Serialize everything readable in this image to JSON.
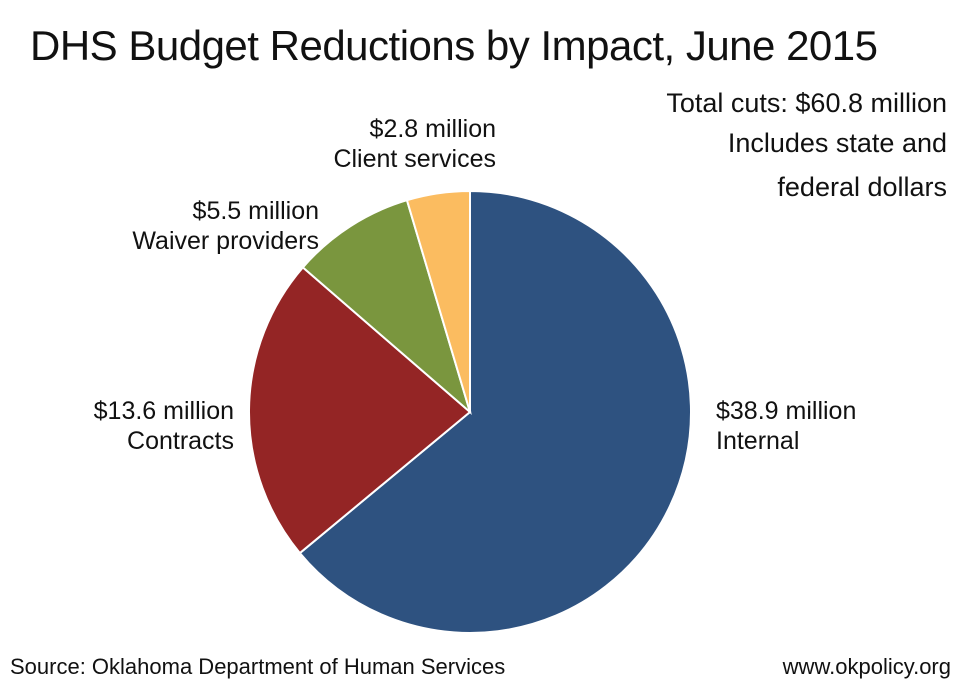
{
  "chart_data": {
    "type": "pie",
    "title": "DHS Budget Reductions by Impact, June 2015",
    "notes": [
      "Total cuts: $60.8 million",
      "Includes state and",
      "federal dollars"
    ],
    "slices": [
      {
        "label": "Internal",
        "value_label": "$38.9 million",
        "value": 38.9,
        "color": "#2e5280"
      },
      {
        "label": "Contracts",
        "value_label": "$13.6 million",
        "value": 13.6,
        "color": "#942525"
      },
      {
        "label": "Waiver providers",
        "value_label": "$5.5 million",
        "value": 5.5,
        "color": "#7a963e"
      },
      {
        "label": "Client services",
        "value_label": "$2.8 million",
        "value": 2.8,
        "color": "#fbbc60"
      }
    ],
    "source": "Source: Oklahoma Department of Human Services",
    "website": "www.okpolicy.org"
  }
}
